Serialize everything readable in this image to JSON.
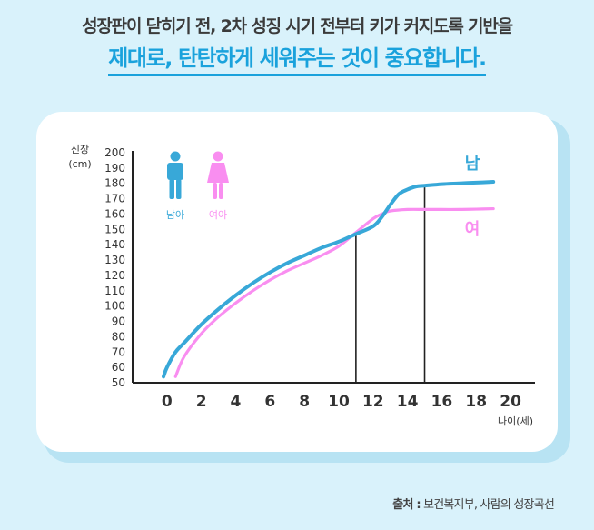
{
  "header": {
    "headline": "성장판이 닫히기 전, 2차 성징 시기 전부터 키가 커지도록 기반을",
    "subhead": "제대로, 탄탄하게 세워주는 것이 중요합니다."
  },
  "legend": {
    "male_label": "남아",
    "female_label": "여아"
  },
  "source": {
    "label": "출처 :",
    "text": " 보건복지부, 사람의 성장곡선"
  },
  "colors": {
    "male": "#38a8d8",
    "female": "#f98ef0",
    "axis": "#222222",
    "background": "#d9f2fb",
    "accent": "#1aa2dc"
  },
  "icons": {
    "male": "male-person-icon",
    "female": "female-person-icon"
  },
  "chart_data": {
    "type": "line",
    "xlabel": "나이(세)",
    "ylabel": "신장\n(cm)",
    "xlim": [
      -2,
      21
    ],
    "ylim": [
      50,
      200
    ],
    "x_ticks": [
      0,
      2,
      4,
      6,
      8,
      10,
      12,
      14,
      16,
      18,
      20
    ],
    "y_ticks": [
      50,
      60,
      70,
      80,
      90,
      100,
      110,
      120,
      130,
      140,
      150,
      160,
      170,
      180,
      190,
      200
    ],
    "grid": false,
    "series": [
      {
        "name": "남",
        "color": "#38a8d8",
        "x": [
          -0.2,
          0,
          0.5,
          1,
          2,
          3,
          4,
          5,
          6,
          7,
          8,
          9,
          10,
          11,
          12,
          12.5,
          13,
          13.5,
          14,
          14.5,
          15,
          16,
          17,
          18,
          19
        ],
        "y": [
          54,
          60,
          70,
          76,
          88,
          98,
          107,
          115,
          122,
          128,
          133,
          138,
          142,
          147,
          152,
          158,
          166,
          173,
          176,
          178,
          178.5,
          179.5,
          180,
          180.5,
          181
        ]
      },
      {
        "name": "여",
        "color": "#f98ef0",
        "x": [
          0.5,
          1,
          2,
          3,
          4,
          5,
          6,
          7,
          8,
          9,
          10,
          11,
          12,
          12.5,
          13,
          14,
          15,
          16,
          17,
          18,
          19
        ],
        "y": [
          54,
          67,
          82,
          93,
          102,
          110,
          117,
          123,
          128,
          133,
          139,
          148,
          157,
          160,
          162,
          163,
          163,
          163,
          163,
          163.2,
          163.5
        ]
      }
    ],
    "reference_lines": [
      {
        "x": 11,
        "y": 148
      },
      {
        "x": 15,
        "y": 178
      }
    ]
  }
}
